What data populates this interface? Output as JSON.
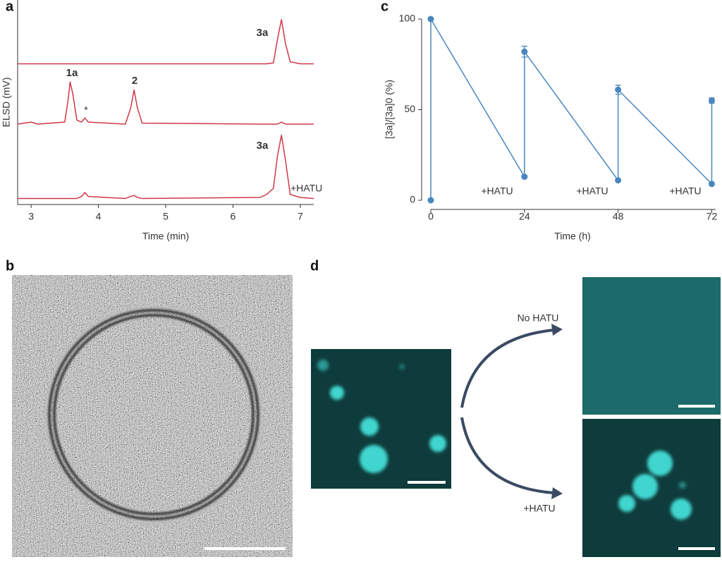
{
  "panel_labels": [
    "a",
    "b",
    "c",
    "d"
  ],
  "chart_data": [
    {
      "type": "line",
      "x_label": "Time (min)",
      "y_label": "ELSD (mV)",
      "x": [
        2.8,
        3.0,
        3.1,
        3.5,
        3.55,
        3.58,
        3.62,
        3.68,
        3.75,
        3.8,
        3.85,
        4.4,
        4.48,
        4.53,
        4.58,
        4.65,
        6.4,
        6.5,
        6.6,
        6.66,
        6.72,
        6.78,
        6.85,
        7.0,
        7.2
      ],
      "series": [
        {
          "color": "#d0384a",
          "values": [
            70,
            70,
            70,
            70,
            70,
            70,
            70,
            70,
            70,
            70,
            70,
            70,
            70,
            70,
            70,
            70,
            70,
            70,
            70.5,
            82,
            92,
            80,
            71,
            70,
            70
          ]
        },
        {
          "color": "#d0384a",
          "values": [
            40,
            41,
            40,
            41,
            52,
            61,
            55,
            42,
            41,
            43,
            41,
            40,
            48,
            57,
            48,
            40.5,
            40,
            40,
            40,
            40,
            41,
            40,
            40,
            40,
            40
          ]
        },
        {
          "color": "#d0384a",
          "values": [
            3,
            3,
            3,
            3,
            3,
            3,
            3,
            3,
            4,
            6,
            4,
            3,
            4,
            4.5,
            3.5,
            3,
            3.5,
            5,
            8,
            24,
            34.5,
            22,
            5,
            3.5,
            3
          ]
        }
      ],
      "xlim": [
        2.8,
        7.2
      ],
      "xticks": [
        3,
        4,
        5,
        6,
        7
      ],
      "ylim": [
        0,
        100
      ],
      "annotations": [
        "3a",
        "1a",
        "*",
        "2",
        "3a",
        "+HATU"
      ]
    },
    {
      "type": "line",
      "x_label": "Time (h)",
      "y_label": "[3a]/[3a]0 (%)",
      "x": [
        0,
        0,
        24,
        24,
        48,
        48,
        72,
        72
      ],
      "series": [
        {
          "color": "#4a87c0",
          "values": [
            0,
            100,
            13,
            82,
            11,
            61,
            9,
            55
          ],
          "errors": [
            null,
            null,
            null,
            3,
            null,
            2.5,
            null,
            1.5
          ]
        }
      ],
      "xlim": [
        0,
        73
      ],
      "xticks": [
        0,
        24,
        48,
        72
      ],
      "ylim": [
        0,
        100
      ],
      "yticks": [
        0,
        50,
        100
      ],
      "annotations": [
        "+HATU",
        "+HATU",
        "+HATU"
      ]
    }
  ],
  "panel_d": {
    "labels": [
      "No HATU",
      "+HATU"
    ]
  }
}
